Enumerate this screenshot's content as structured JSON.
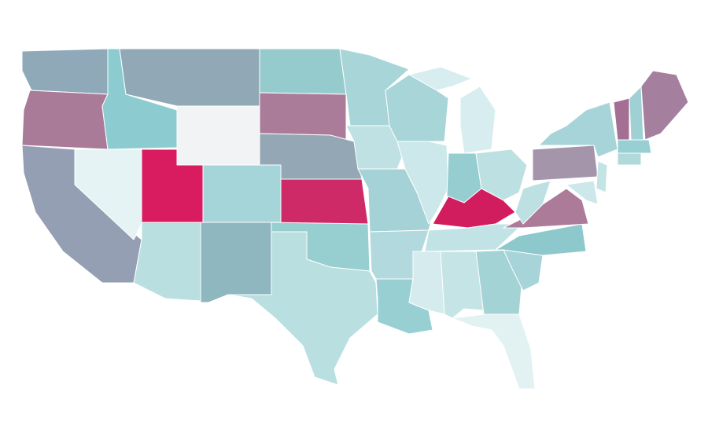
{
  "map": {
    "fills": [
      "#8fa9b8",
      "#a97b98",
      "#959fb4",
      "#8ccbcf",
      "#e5f3f5",
      "#91a9b6",
      "#f2f3f4",
      "#d91b60",
      "#b9dfe1",
      "#a6d5d9",
      "#8fb7bf",
      "#96cbcd",
      "#ab7c99",
      "#94a7b4",
      "#cf2a68",
      "#97cfd1",
      "#badfe1",
      "#a8d5d8",
      "#bfe1e3",
      "#a5d2d6",
      "#b2d9dd",
      "#98cfd3",
      "#a7d5d8",
      "#cde8ea",
      "#d8edef",
      "#d8edef",
      "#95cdd1",
      "#bde0e3",
      "#d11d5d",
      "#c1e3e5",
      "#d5ebed",
      "#c5e4e6",
      "#a4d3d6",
      "#e2f1f2",
      "#a7d4d8",
      "#8cc8cc",
      "#ad7b9a",
      "#bde0e2",
      "#a495ab",
      "#a6d4d8",
      "#a36f92",
      "#9ed0d4",
      "#a57f9e",
      "#98cfd3",
      "#b0d9dc",
      "#c4e3e5",
      "#cde7ea"
    ]
  }
}
